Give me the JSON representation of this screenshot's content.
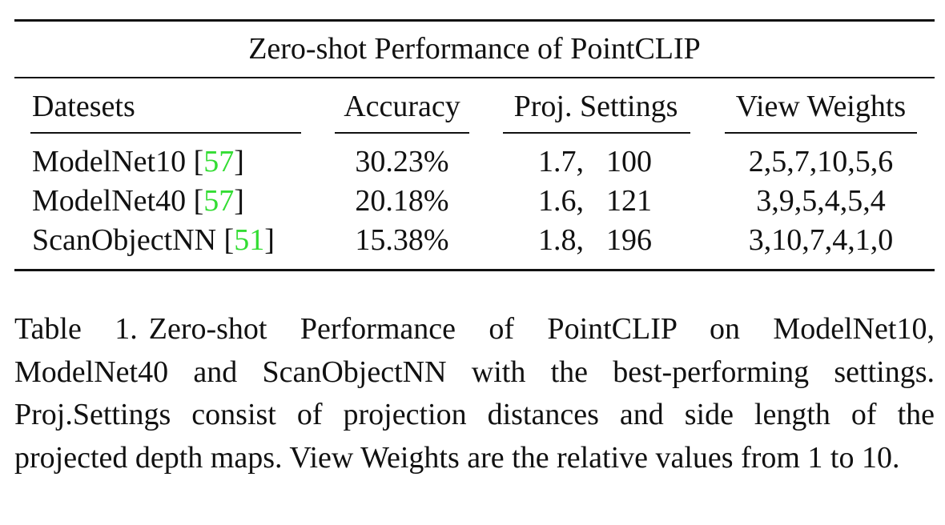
{
  "table": {
    "title": "Zero-shot Performance of PointCLIP",
    "headers": [
      "Datesets",
      "Accuracy",
      "Proj. Settings",
      "View Weights"
    ],
    "rows": [
      {
        "dataset": "ModelNet10",
        "citation": "57",
        "accuracy": "30.23%",
        "proj_distance": "1.7,",
        "proj_side_length": "100",
        "view_weights": "2,5,7,10,5,6"
      },
      {
        "dataset": "ModelNet40",
        "citation": "57",
        "accuracy": "20.18%",
        "proj_distance": "1.6,",
        "proj_side_length": "121",
        "view_weights": "3,9,5,4,5,4"
      },
      {
        "dataset": "ScanObjectNN",
        "citation": "51",
        "accuracy": "15.38%",
        "proj_distance": "1.8,",
        "proj_side_length": "196",
        "view_weights": "3,10,7,4,1,0"
      }
    ]
  },
  "caption": {
    "label": "Table 1.",
    "text": "Zero-shot Performance of PointCLIP on ModelNet10, ModelNet40 and ScanObjectNN with the best-performing set­tings. Proj.Settings consist of projection distances and side length of the projected depth maps. View Weights are the relative values from 1 to 10."
  },
  "colors": {
    "citation": "#33dd33",
    "text": "#111111"
  }
}
